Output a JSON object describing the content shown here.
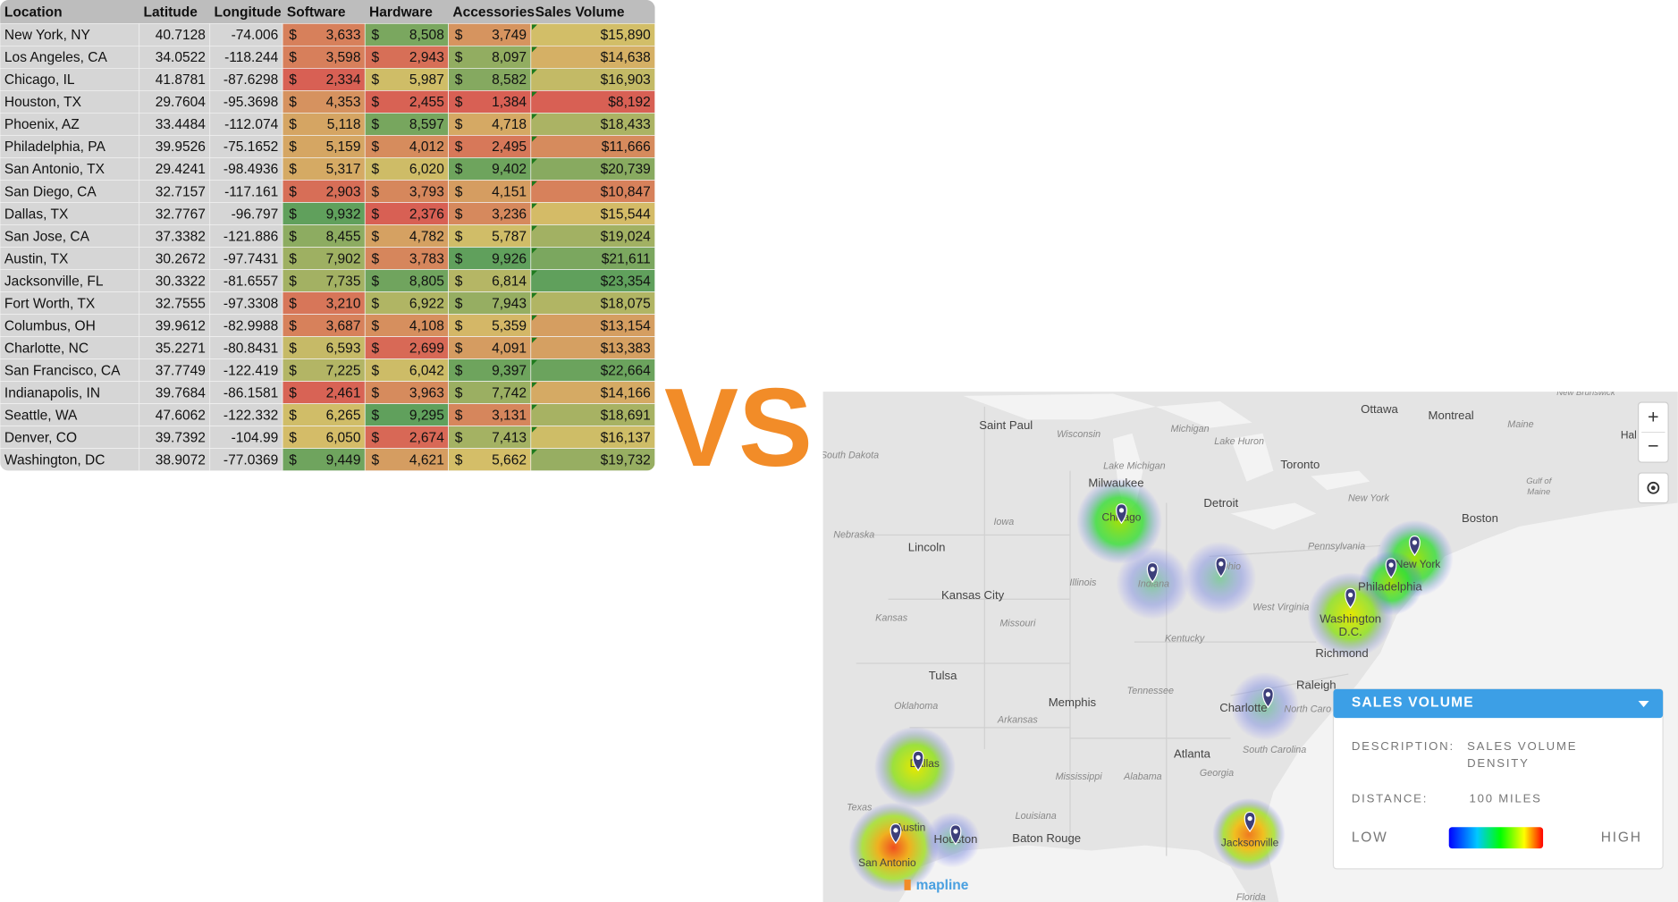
{
  "table": {
    "headers": [
      "Location",
      "Latitude",
      "Longitude",
      "Software",
      "Hardware",
      "Accessories",
      "Sales Volume"
    ],
    "currency_symbol": "$",
    "rows": [
      [
        "New York, NY",
        "40.7128",
        "-74.006",
        "3,633",
        "8,508",
        "3,749",
        "$15,890"
      ],
      [
        "Los Angeles, CA",
        "34.0522",
        "-118.244",
        "3,598",
        "2,943",
        "8,097",
        "$14,638"
      ],
      [
        "Chicago, IL",
        "41.8781",
        "-87.6298",
        "2,334",
        "5,987",
        "8,582",
        "$16,903"
      ],
      [
        "Houston, TX",
        "29.7604",
        "-95.3698",
        "4,353",
        "2,455",
        "1,384",
        "$8,192"
      ],
      [
        "Phoenix, AZ",
        "33.4484",
        "-112.074",
        "5,118",
        "8,597",
        "4,718",
        "$18,433"
      ],
      [
        "Philadelphia, PA",
        "39.9526",
        "-75.1652",
        "5,159",
        "4,012",
        "2,495",
        "$11,666"
      ],
      [
        "San Antonio, TX",
        "29.4241",
        "-98.4936",
        "5,317",
        "6,020",
        "9,402",
        "$20,739"
      ],
      [
        "San Diego, CA",
        "32.7157",
        "-117.161",
        "2,903",
        "3,793",
        "4,151",
        "$10,847"
      ],
      [
        "Dallas, TX",
        "32.7767",
        "-96.797",
        "9,932",
        "2,376",
        "3,236",
        "$15,544"
      ],
      [
        "San Jose, CA",
        "37.3382",
        "-121.886",
        "8,455",
        "4,782",
        "5,787",
        "$19,024"
      ],
      [
        "Austin, TX",
        "30.2672",
        "-97.7431",
        "7,902",
        "3,783",
        "9,926",
        "$21,611"
      ],
      [
        "Jacksonville, FL",
        "30.3322",
        "-81.6557",
        "7,735",
        "8,805",
        "6,814",
        "$23,354"
      ],
      [
        "Fort Worth, TX",
        "32.7555",
        "-97.3308",
        "3,210",
        "6,922",
        "7,943",
        "$18,075"
      ],
      [
        "Columbus, OH",
        "39.9612",
        "-82.9988",
        "3,687",
        "4,108",
        "5,359",
        "$13,154"
      ],
      [
        "Charlotte, NC",
        "35.2271",
        "-80.8431",
        "6,593",
        "2,699",
        "4,091",
        "$13,383"
      ],
      [
        "San Francisco, CA",
        "37.7749",
        "-122.419",
        "7,225",
        "6,042",
        "9,397",
        "$22,664"
      ],
      [
        "Indianapolis, IN",
        "39.7684",
        "-86.1581",
        "2,461",
        "3,963",
        "7,742",
        "$14,166"
      ],
      [
        "Seattle, WA",
        "47.6062",
        "-122.332",
        "6,265",
        "9,295",
        "3,131",
        "$18,691"
      ],
      [
        "Denver, CO",
        "39.7392",
        "-104.99",
        "6,050",
        "2,674",
        "7,413",
        "$16,137"
      ],
      [
        "Washington, DC",
        "38.9072",
        "-77.0369",
        "9,449",
        "4,621",
        "5,662",
        "$19,732"
      ]
    ]
  },
  "vs": "VS",
  "map": {
    "labels": [
      "Saint Paul",
      "Wisconsin",
      "Michigan",
      "Lake Huron",
      "Ottawa",
      "Montreal",
      "Maine",
      "New Brunswick",
      "South Dakota",
      "Lake Michigan",
      "Toronto",
      "Milwaukee",
      "Detroit",
      "New York",
      "Boston",
      "Gulf of",
      "Maine",
      "Iowa",
      "Nebraska",
      "Lincoln",
      "Pennsylvania",
      "Chicago",
      "Indiana",
      "Ohio",
      "Illinois",
      "New York",
      "Philadelphia",
      "Kansas City",
      "Missouri",
      "Kansas",
      "West Virginia",
      "Washington",
      "D.C.",
      "Kentucky",
      "Richmond",
      "Tulsa",
      "Raleigh",
      "Memphis",
      "Tennessee",
      "Oklahoma",
      "Charlotte",
      "North Caro",
      "Arkansas",
      "South Carolina",
      "Atlanta",
      "Dallas",
      "Georgia",
      "Mississippi",
      "Alabama",
      "Texas",
      "Louisiana",
      "Baton Rouge",
      "Austin",
      "Houston",
      "San Antonio",
      "Jacksonville",
      "Florida",
      "Hal"
    ],
    "controls": [
      "+",
      "−"
    ],
    "logo": "mapline",
    "legend": {
      "title": "SALES VOLUME",
      "description_label": "DESCRIPTION:",
      "description": [
        "SALES VOLUME",
        "DENSITY"
      ],
      "distance_label": "DISTANCE:",
      "distance": "100 MILES",
      "low": "LOW",
      "high": "HIGH"
    }
  }
}
